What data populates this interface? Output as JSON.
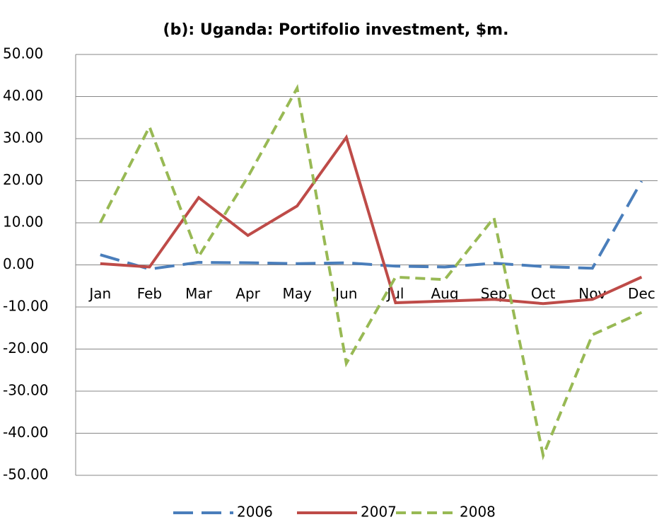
{
  "chart_data": {
    "type": "line",
    "title": "(b): Uganda: Portifolio investment, $m.",
    "categories": [
      "Jan",
      "Feb",
      "Mar",
      "Apr",
      "May",
      "Jun",
      "Jul",
      "Aug",
      "Sep",
      "Oct",
      "Nov",
      "Dec"
    ],
    "series": [
      {
        "name": "2006",
        "color": "#4a7ebb",
        "dash": "long",
        "values": [
          2.4,
          -1,
          0.6,
          0.5,
          0.3,
          0.5,
          -0.3,
          -0.5,
          0.4,
          -0.4,
          -0.8,
          19.9
        ]
      },
      {
        "name": "2007",
        "color": "#be4b48",
        "dash": "solid",
        "values": [
          0.3,
          -0.5,
          16,
          7,
          14,
          30.3,
          -9,
          -8.6,
          -8.2,
          -9.2,
          -8.2,
          -2.9
        ]
      },
      {
        "name": "2008",
        "color": "#98b954",
        "dash": "short",
        "values": [
          10,
          32.8,
          2,
          20.9,
          42,
          -23.4,
          -2.9,
          -3.5,
          11.2,
          -45.3,
          -16.6,
          -11.3
        ]
      }
    ],
    "ylim": [
      -50,
      50
    ],
    "yticks": [
      {
        "value": -50,
        "label": "-50.00"
      },
      {
        "value": -40,
        "label": "-40.00"
      },
      {
        "value": -30,
        "label": "-30.00"
      },
      {
        "value": -20,
        "label": "-20.00"
      },
      {
        "value": -10,
        "label": "-10.00"
      },
      {
        "value": 0,
        "label": "0.00"
      },
      {
        "value": 10,
        "label": "10.00"
      },
      {
        "value": 20,
        "label": "20.00"
      },
      {
        "value": 30,
        "label": "30.00"
      },
      {
        "value": 40,
        "label": "40.00"
      },
      {
        "value": 50,
        "label": "50.00"
      }
    ],
    "grid": true,
    "legend": "bottom"
  }
}
